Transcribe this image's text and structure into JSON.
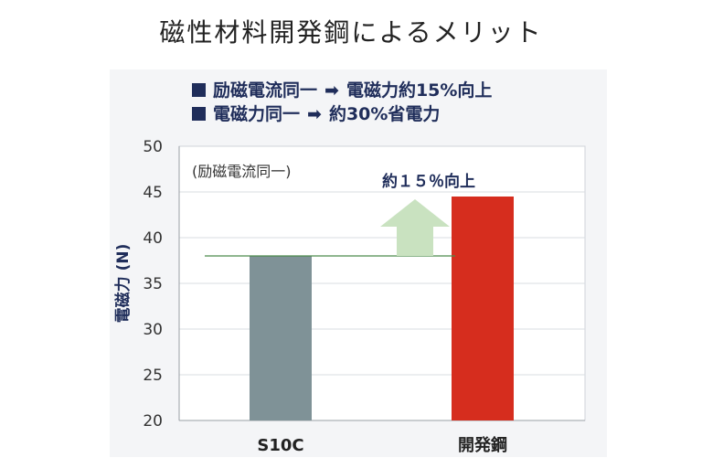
{
  "title": "磁性材料開発鋼によるメリット",
  "bullets": [
    {
      "text_a": "励磁電流同一",
      "arrow": "➡",
      "text_b": "電磁力約15%向上"
    },
    {
      "text_a": "電磁力同一",
      "arrow": "➡",
      "text_b": "約30%省電力"
    }
  ],
  "condition_label": "(励磁電流同一)",
  "improvement_label": "約１５％向上",
  "colors": {
    "bar_s10c": "#7f9297",
    "bar_new": "#d62d1e",
    "arrow_fill": "#c9e2c0",
    "reference_line": "#4a8a4a",
    "text_navy": "#1f2d5a"
  },
  "chart_data": {
    "type": "bar",
    "categories": [
      "S10C",
      "開発鋼"
    ],
    "values": [
      38,
      44.5
    ],
    "ylabel": "電磁力 (N)",
    "ylim": [
      20,
      50
    ],
    "yticks": [
      20,
      25,
      30,
      35,
      40,
      45,
      50
    ],
    "grid": true
  }
}
